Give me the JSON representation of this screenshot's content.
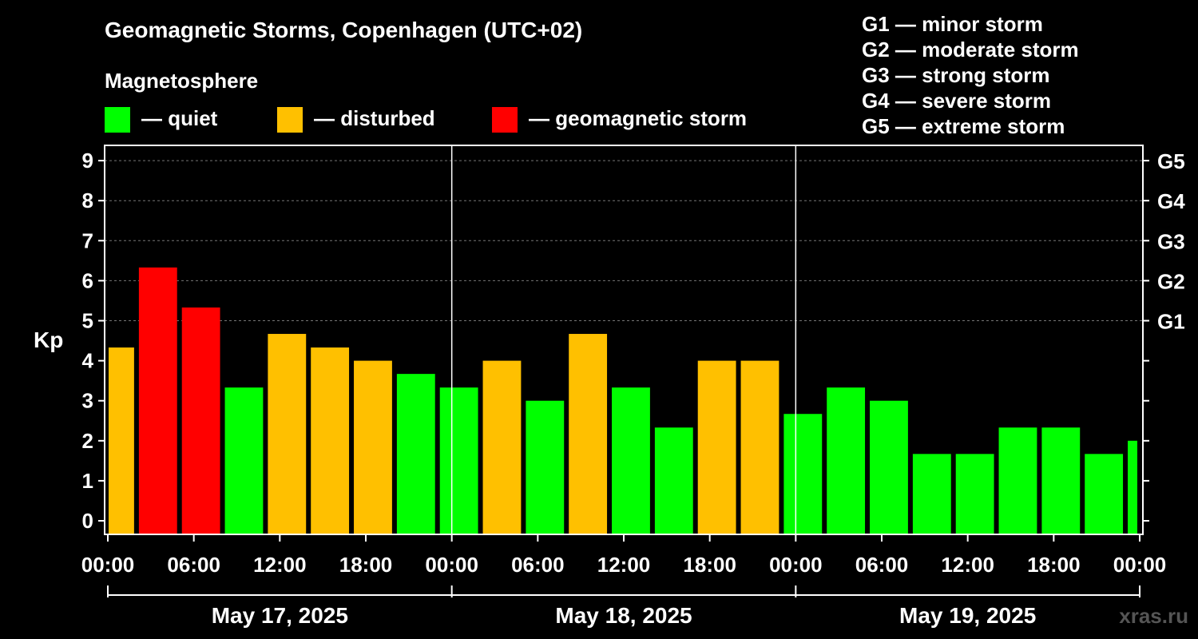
{
  "chart_data": {
    "type": "bar",
    "title": "Geomagnetic Storms, Copenhagen (UTC+02)",
    "ylabel": "Kp",
    "ylim": [
      0,
      9
    ],
    "yticks": [
      "0",
      "1",
      "2",
      "3",
      "4",
      "5",
      "6",
      "7",
      "8",
      "9"
    ],
    "gscale": [
      {
        "kp": 5,
        "label": "G1"
      },
      {
        "kp": 6,
        "label": "G2"
      },
      {
        "kp": 7,
        "label": "G3"
      },
      {
        "kp": 8,
        "label": "G4"
      },
      {
        "kp": 9,
        "label": "G5"
      }
    ],
    "x_tick_labels": [
      "00:00",
      "06:00",
      "12:00",
      "18:00",
      "00:00",
      "06:00",
      "12:00",
      "18:00",
      "00:00",
      "06:00",
      "12:00",
      "18:00",
      "00:00"
    ],
    "days": [
      "May 17, 2025",
      "May 18, 2025",
      "May 19, 2025"
    ],
    "hours_total": 72,
    "bars": [
      {
        "start": 0,
        "end": 2,
        "kp": 4.33,
        "level": "disturbed"
      },
      {
        "start": 2,
        "end": 5,
        "kp": 6.33,
        "level": "storm"
      },
      {
        "start": 5,
        "end": 8,
        "kp": 5.33,
        "level": "storm"
      },
      {
        "start": 8,
        "end": 11,
        "kp": 3.33,
        "level": "quiet"
      },
      {
        "start": 11,
        "end": 14,
        "kp": 4.67,
        "level": "disturbed"
      },
      {
        "start": 14,
        "end": 17,
        "kp": 4.33,
        "level": "disturbed"
      },
      {
        "start": 17,
        "end": 20,
        "kp": 4.0,
        "level": "disturbed"
      },
      {
        "start": 20,
        "end": 23,
        "kp": 3.67,
        "level": "quiet"
      },
      {
        "start": 23,
        "end": 26,
        "kp": 3.33,
        "level": "quiet"
      },
      {
        "start": 26,
        "end": 29,
        "kp": 4.0,
        "level": "disturbed"
      },
      {
        "start": 29,
        "end": 32,
        "kp": 3.0,
        "level": "quiet"
      },
      {
        "start": 32,
        "end": 35,
        "kp": 4.67,
        "level": "disturbed"
      },
      {
        "start": 35,
        "end": 38,
        "kp": 3.33,
        "level": "quiet"
      },
      {
        "start": 38,
        "end": 41,
        "kp": 2.33,
        "level": "quiet"
      },
      {
        "start": 41,
        "end": 44,
        "kp": 4.0,
        "level": "disturbed"
      },
      {
        "start": 44,
        "end": 47,
        "kp": 4.0,
        "level": "disturbed"
      },
      {
        "start": 47,
        "end": 50,
        "kp": 2.67,
        "level": "quiet"
      },
      {
        "start": 50,
        "end": 53,
        "kp": 3.33,
        "level": "quiet"
      },
      {
        "start": 53,
        "end": 56,
        "kp": 3.0,
        "level": "quiet"
      },
      {
        "start": 56,
        "end": 59,
        "kp": 1.67,
        "level": "quiet"
      },
      {
        "start": 59,
        "end": 62,
        "kp": 1.67,
        "level": "quiet"
      },
      {
        "start": 62,
        "end": 65,
        "kp": 2.33,
        "level": "quiet"
      },
      {
        "start": 65,
        "end": 68,
        "kp": 2.33,
        "level": "quiet"
      },
      {
        "start": 68,
        "end": 71,
        "kp": 1.67,
        "level": "quiet"
      },
      {
        "start": 71,
        "end": 72,
        "kp": 2.0,
        "level": "quiet"
      }
    ]
  },
  "colors": {
    "quiet": "#00ff00",
    "disturbed": "#ffc000",
    "storm": "#ff0000",
    "background": "#000000",
    "axis": "#ffffff",
    "grid": "#777777",
    "watermark": "#555555"
  },
  "magnetosphere": {
    "label": "Magnetosphere",
    "legend": [
      {
        "key": "quiet",
        "text": "— quiet"
      },
      {
        "key": "disturbed",
        "text": "— disturbed"
      },
      {
        "key": "storm",
        "text": "— geomagnetic storm"
      }
    ]
  },
  "g_legend": [
    "G1 — minor storm",
    "G2 — moderate storm",
    "G3 — strong storm",
    "G4 — severe storm",
    "G5 — extreme storm"
  ],
  "watermark": "xras.ru"
}
